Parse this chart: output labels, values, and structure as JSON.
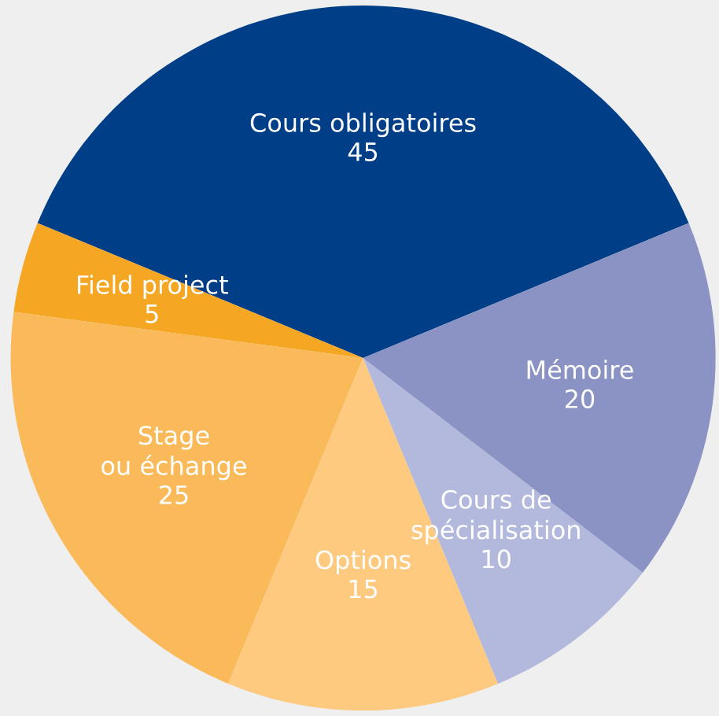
{
  "chart_data": {
    "type": "pie",
    "categories": [
      "Cours obligatoires",
      "Field project",
      "Stage\nou échange",
      "Options",
      "Cours de\nspécialisation",
      "Mémoire"
    ],
    "values": [
      45,
      5,
      25,
      15,
      10,
      20
    ],
    "colors": [
      "#003f87",
      "#f5a623",
      "#fbba5a",
      "#fdca80",
      "#b3b9dc",
      "#8a93c3"
    ],
    "data_labels": true
  }
}
